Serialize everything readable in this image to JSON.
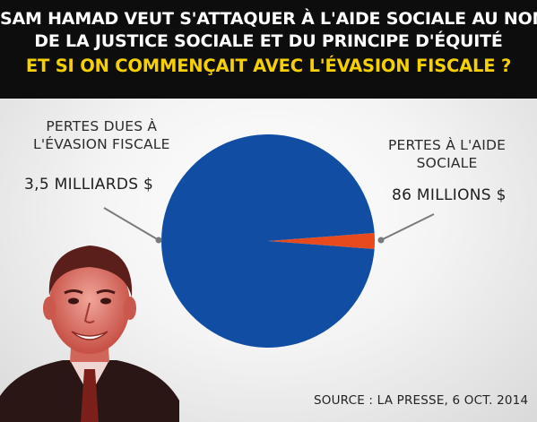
{
  "header": {
    "line1": "SAM HAMAD VEUT S'ATTAQUER À L'AIDE SOCIALE AU NOM",
    "line2": "DE LA JUSTICE SOCIALE ET DU PRINCIPE D'ÉQUITÉ",
    "line3": "ET SI ON COMMENÇAIT AVEC L'ÉVASION FISCALE ?"
  },
  "chart_data": {
    "type": "pie",
    "series": [
      {
        "label_lines": [
          "PERTES DUES À",
          "L'ÉVASION FISCALE"
        ],
        "value_text": "3,5 MILLIARDS $",
        "value": 3500000000,
        "color": "#114ea3"
      },
      {
        "label_lines": [
          "PERTES À L'AIDE",
          "SOCIALE"
        ],
        "value_text": "86 MILLIONS $",
        "value": 86000000,
        "color": "#e8491d"
      }
    ]
  },
  "source": "SOURCE : LA PRESSE, 6 OCT. 2014",
  "colors": {
    "header_bg": "#0d0d0d",
    "header_text": "#ffffff",
    "header_accent": "#f7d000",
    "leader_line": "#7a7a7a"
  },
  "icons": {
    "photo": "politician-portrait-red-tint"
  }
}
